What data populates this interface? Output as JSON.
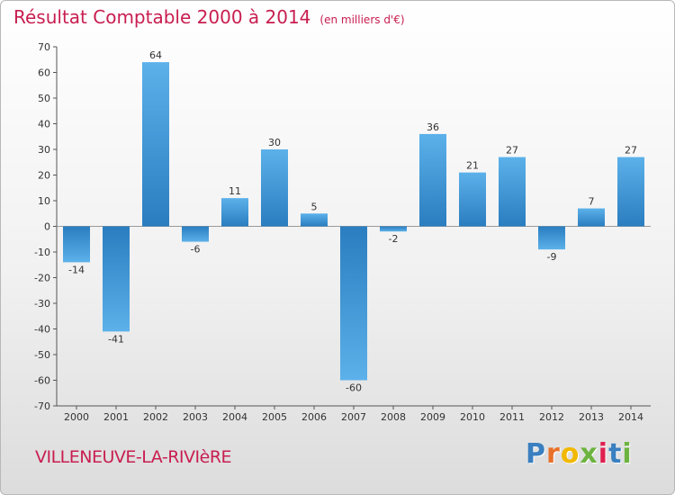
{
  "header": {
    "title": "Résultat Comptable 2000 à 2014",
    "unit": "(en milliers d'€)"
  },
  "footer": {
    "town": "VILLENEUVE-LA-RIVIèRE",
    "logo_letters": [
      "P",
      "r",
      "o",
      "x",
      "i",
      "t",
      "i"
    ],
    "logo_colors": [
      "#3a7fc0",
      "#e8702a",
      "#f2b800",
      "#6cb33f",
      "#e0204f",
      "#3a7fc0",
      "#6cb33f"
    ]
  },
  "colors": {
    "title": "#c81e50",
    "bar_light": "#5cb1ea",
    "bar_dark": "#2a7dbf"
  },
  "chart_data": {
    "type": "bar",
    "title": "Résultat Comptable 2000 à 2014",
    "subtitle": "(en milliers d'€)",
    "xlabel": "",
    "ylabel": "",
    "categories": [
      "2000",
      "2001",
      "2002",
      "2003",
      "2004",
      "2005",
      "2006",
      "2007",
      "2008",
      "2009",
      "2010",
      "2011",
      "2012",
      "2013",
      "2014"
    ],
    "values": [
      -14,
      -41,
      64,
      -6,
      11,
      30,
      5,
      -60,
      -2,
      36,
      21,
      27,
      -9,
      7,
      27
    ],
    "ylim": [
      -70,
      70
    ],
    "yticks": [
      70,
      60,
      50,
      40,
      30,
      20,
      10,
      0,
      -10,
      -20,
      -30,
      -40,
      -50,
      -60,
      -70
    ],
    "grid": false,
    "legend": "none"
  }
}
